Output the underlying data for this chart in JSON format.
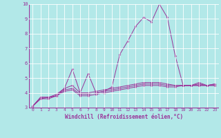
{
  "xlabel": "Windchill (Refroidissement éolien,°C)",
  "background_color": "#b2e8e8",
  "grid_color": "#ffffff",
  "line_color": "#993399",
  "xlim": [
    -0.5,
    23.5
  ],
  "ylim": [
    3,
    10
  ],
  "yticks": [
    3,
    4,
    5,
    6,
    7,
    8,
    9,
    10
  ],
  "xticks": [
    0,
    1,
    2,
    3,
    4,
    5,
    6,
    7,
    8,
    9,
    10,
    11,
    12,
    13,
    14,
    15,
    16,
    17,
    18,
    19,
    20,
    21,
    22,
    23
  ],
  "series": [
    [
      3.1,
      3.7,
      3.7,
      3.8,
      4.3,
      5.6,
      4.0,
      5.3,
      4.0,
      4.1,
      4.4,
      6.6,
      7.5,
      8.5,
      9.1,
      8.8,
      10.0,
      9.1,
      6.5,
      4.5,
      4.5,
      4.7,
      4.5,
      4.6
    ],
    [
      3.1,
      3.7,
      3.7,
      3.9,
      4.3,
      4.5,
      4.0,
      4.0,
      4.1,
      4.2,
      4.3,
      4.4,
      4.5,
      4.6,
      4.7,
      4.7,
      4.7,
      4.6,
      4.5,
      4.5,
      4.5,
      4.6,
      4.5,
      4.6
    ],
    [
      3.1,
      3.6,
      3.7,
      3.8,
      4.2,
      4.3,
      3.9,
      3.9,
      4.0,
      4.1,
      4.2,
      4.3,
      4.4,
      4.5,
      4.6,
      4.6,
      4.6,
      4.5,
      4.5,
      4.5,
      4.5,
      4.5,
      4.5,
      4.5
    ],
    [
      3.1,
      3.6,
      3.6,
      3.8,
      4.1,
      4.2,
      3.8,
      3.8,
      3.9,
      4.0,
      4.1,
      4.2,
      4.3,
      4.4,
      4.5,
      4.5,
      4.5,
      4.4,
      4.4,
      4.5,
      4.5,
      4.5,
      4.5,
      4.5
    ]
  ]
}
